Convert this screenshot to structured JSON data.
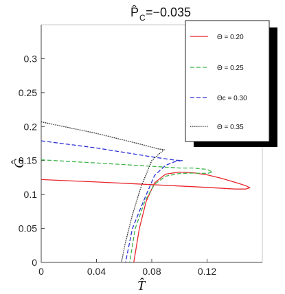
{
  "chart_data": {
    "type": "line",
    "title": "P̂C=−0.035",
    "title_main": "P̂",
    "title_sub": "C",
    "title_value": "=−0.035",
    "xlabel": "T̂",
    "ylabel": "Ĝ",
    "xlim": [
      0,
      0.16
    ],
    "ylim": [
      0,
      0.35
    ],
    "xticks": [
      0,
      0.04,
      0.08,
      0.12
    ],
    "xtick_labels": [
      "0",
      "0.04",
      "0.08",
      "0.12"
    ],
    "yticks": [
      0,
      0.05,
      0.1,
      0.15,
      0.2,
      0.25,
      0.3
    ],
    "ytick_labels": [
      "0",
      "0.05",
      "0.1",
      "0.15",
      "0.2",
      "0.25",
      "0.3"
    ],
    "grid": false,
    "legend_position": "top-right",
    "series": [
      {
        "name": "Θ = 0.20",
        "color": "#e8252b",
        "dash": "solid",
        "points": [
          [
            0.0,
            0.122
          ],
          [
            0.04,
            0.1185
          ],
          [
            0.08,
            0.1145
          ],
          [
            0.12,
            0.1105
          ],
          [
            0.14,
            0.108
          ],
          [
            0.148,
            0.108
          ],
          [
            0.151,
            0.11
          ],
          [
            0.148,
            0.113
          ],
          [
            0.14,
            0.118
          ],
          [
            0.13,
            0.124
          ],
          [
            0.12,
            0.129
          ],
          [
            0.11,
            0.132
          ],
          [
            0.1,
            0.133
          ],
          [
            0.09,
            0.13
          ],
          [
            0.082,
            0.117
          ],
          [
            0.076,
            0.09
          ],
          [
            0.071,
            0.05
          ],
          [
            0.067,
            0.0
          ],
          [
            0.066,
            -0.01
          ]
        ]
      },
      {
        "name": "Θ = 0.25",
        "color": "#3cb54a",
        "dash": "dashed",
        "points": [
          [
            0.0,
            0.151
          ],
          [
            0.04,
            0.1465
          ],
          [
            0.08,
            0.1415
          ],
          [
            0.1,
            0.139
          ],
          [
            0.11,
            0.139
          ],
          [
            0.12,
            0.137
          ],
          [
            0.124,
            0.133
          ],
          [
            0.12,
            0.131
          ],
          [
            0.11,
            0.1315
          ],
          [
            0.1,
            0.131
          ],
          [
            0.09,
            0.127
          ],
          [
            0.082,
            0.115
          ],
          [
            0.075,
            0.09
          ],
          [
            0.068,
            0.05
          ],
          [
            0.064,
            0.0
          ],
          [
            0.063,
            -0.01
          ]
        ]
      },
      {
        "name": "Θc = 0.30",
        "color": "#2a2fd4",
        "dash": "dashed",
        "points": [
          [
            0.0,
            0.179
          ],
          [
            0.04,
            0.1685
          ],
          [
            0.08,
            0.1555
          ],
          [
            0.097,
            0.1505
          ],
          [
            0.102,
            0.15
          ],
          [
            0.097,
            0.1485
          ],
          [
            0.09,
            0.143
          ],
          [
            0.082,
            0.128
          ],
          [
            0.074,
            0.09
          ],
          [
            0.066,
            0.05
          ],
          [
            0.061,
            0.0
          ],
          [
            0.06,
            -0.01
          ]
        ]
      },
      {
        "name": "Θ = 0.35",
        "color": "#111111",
        "dash": "dotted",
        "points": [
          [
            0.0,
            0.207
          ],
          [
            0.04,
            0.19
          ],
          [
            0.07,
            0.175
          ],
          [
            0.085,
            0.167
          ],
          [
            0.089,
            0.166
          ],
          [
            0.086,
            0.161
          ],
          [
            0.08,
            0.15
          ],
          [
            0.072,
            0.11
          ],
          [
            0.066,
            0.07
          ],
          [
            0.061,
            0.03
          ],
          [
            0.058,
            0.0
          ],
          [
            0.057,
            -0.01
          ]
        ]
      }
    ]
  }
}
